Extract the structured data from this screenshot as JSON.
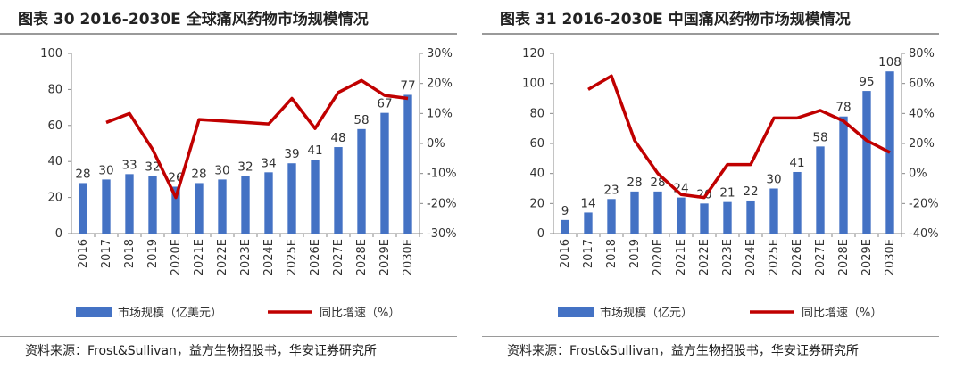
{
  "colors": {
    "bar": "#4472c4",
    "line": "#c00000"
  },
  "chart_data": [
    {
      "type": "bar",
      "title": "图表 30 2016-2030E 全球痛风药物市场规模情况",
      "categories": [
        "2016",
        "2017",
        "2018",
        "2019",
        "2020E",
        "2021E",
        "2022E",
        "2023E",
        "2024E",
        "2025E",
        "2026E",
        "2027E",
        "2028E",
        "2029E",
        "2030E"
      ],
      "series": [
        {
          "name": "市场规模（亿美元）",
          "type": "bar",
          "axis": "left",
          "values": [
            28,
            30,
            33,
            32,
            26,
            28,
            30,
            32,
            34,
            39,
            41,
            48,
            58,
            67,
            77
          ]
        },
        {
          "name": "同比增速（%）",
          "type": "line",
          "axis": "right",
          "values": [
            null,
            7,
            10,
            -2,
            -18,
            8,
            7.5,
            7,
            6.5,
            15,
            5,
            17,
            21,
            16,
            15
          ]
        }
      ],
      "ylim_left": [
        0,
        100
      ],
      "yticks_left": [
        0,
        20,
        40,
        60,
        80,
        100
      ],
      "ylim_right": [
        -30,
        30
      ],
      "yticks_right": [
        "-30%",
        "-20%",
        "-10%",
        "0%",
        "10%",
        "20%",
        "30%"
      ],
      "legend_position": "bottom",
      "source": "资料来源：Frost&Sullivan，益方生物招股书，华安证券研究所"
    },
    {
      "type": "bar",
      "title": "图表 31 2016-2030E 中国痛风药物市场规模情况",
      "categories": [
        "2016",
        "2017",
        "2018",
        "2019",
        "2020E",
        "2021E",
        "2022E",
        "2023E",
        "2024E",
        "2025E",
        "2026E",
        "2027E",
        "2028E",
        "2029E",
        "2030E"
      ],
      "series": [
        {
          "name": "市场规模（亿元）",
          "type": "bar",
          "axis": "left",
          "values": [
            9,
            14,
            23,
            28,
            28,
            24,
            20,
            21,
            22,
            30,
            41,
            58,
            78,
            95,
            108
          ]
        },
        {
          "name": "同比增速（%）",
          "type": "line",
          "axis": "right",
          "values": [
            null,
            56,
            65,
            22,
            0,
            -14,
            -16,
            6,
            6,
            37,
            37,
            42,
            35,
            22,
            14
          ]
        }
      ],
      "ylim_left": [
        0,
        120
      ],
      "yticks_left": [
        0,
        20,
        40,
        60,
        80,
        100,
        120
      ],
      "ylim_right": [
        -40,
        80
      ],
      "yticks_right": [
        "-40%",
        "-20%",
        "0%",
        "20%",
        "40%",
        "60%",
        "80%"
      ],
      "legend_position": "bottom",
      "source": "资料来源：Frost&Sullivan，益方生物招股书，华安证券研究所"
    }
  ]
}
